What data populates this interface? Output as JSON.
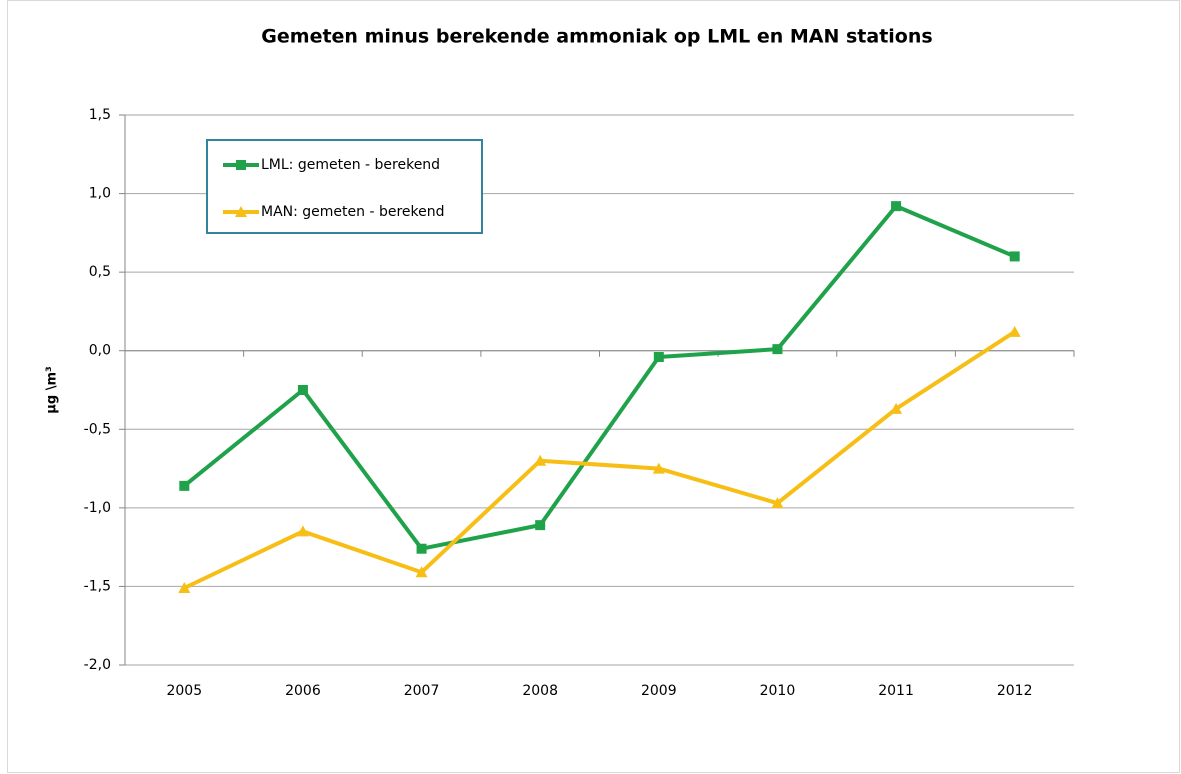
{
  "chart_data": {
    "type": "line",
    "title": "Gemeten minus berekende ammoniak op LML en MAN stations",
    "y_label": "µg \\m³",
    "categories": [
      "2005",
      "2006",
      "2007",
      "2008",
      "2009",
      "2010",
      "2011",
      "2012"
    ],
    "series": [
      {
        "name": "LML: gemeten - berekend",
        "color": "#1fa24a",
        "marker": "square",
        "values": [
          -0.86,
          -0.25,
          -1.26,
          -1.11,
          -0.04,
          0.01,
          0.92,
          0.6
        ]
      },
      {
        "name": "MAN: gemeten - berekend",
        "color": "#f7be16",
        "marker": "triangle",
        "values": [
          -1.51,
          -1.15,
          -1.41,
          -0.7,
          -0.75,
          -0.97,
          -0.37,
          0.12
        ]
      }
    ],
    "ylim": [
      -2.0,
      1.5
    ],
    "yticks": [
      {
        "value": -2.0,
        "label": "-2,0"
      },
      {
        "value": -1.5,
        "label": "-1,5"
      },
      {
        "value": -1.0,
        "label": "-1,0"
      },
      {
        "value": -0.5,
        "label": "-0,5"
      },
      {
        "value": 0.0,
        "label": "0,0"
      },
      {
        "value": 0.5,
        "label": "0,5"
      },
      {
        "value": 1.0,
        "label": "1,0"
      },
      {
        "value": 1.5,
        "label": "1,5"
      }
    ],
    "grid": true,
    "legend": "top-left"
  }
}
